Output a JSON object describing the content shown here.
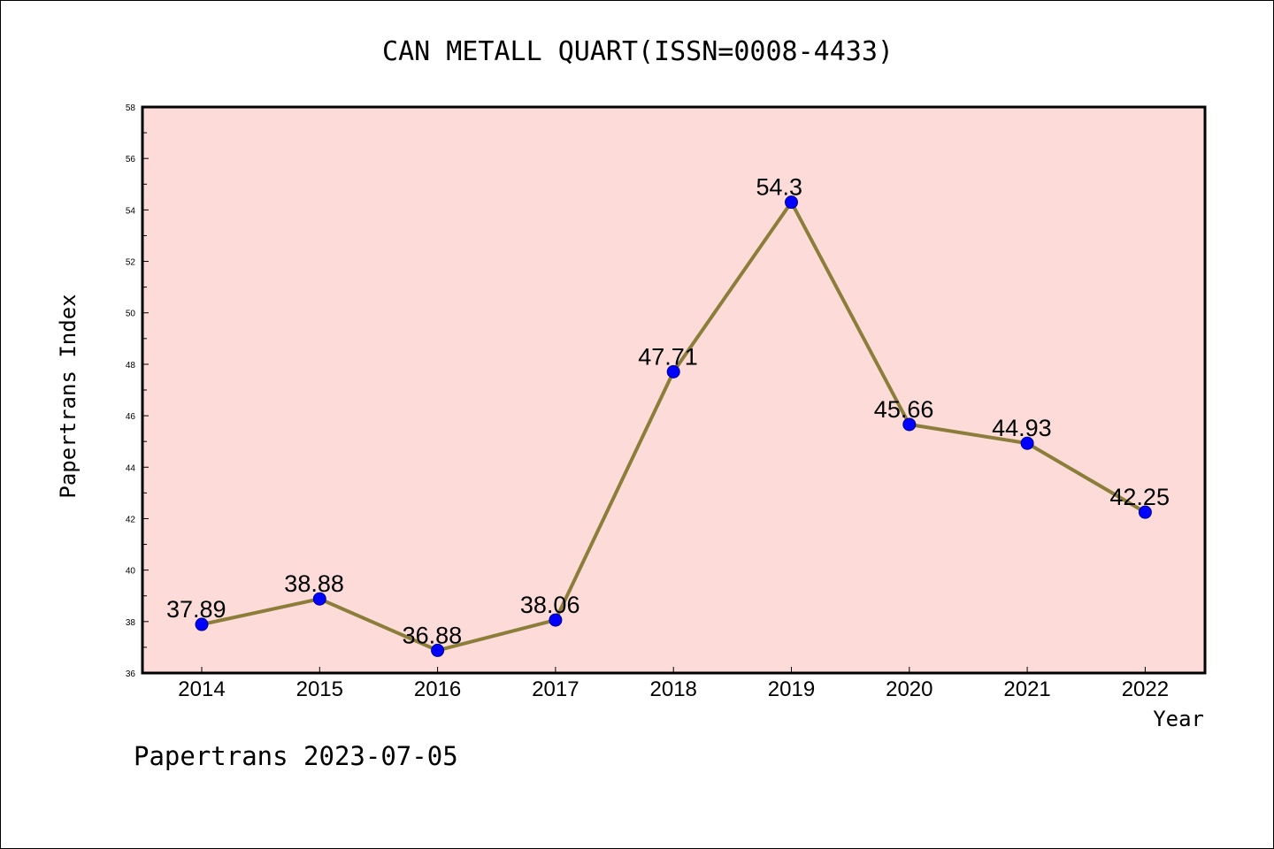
{
  "chart_data": {
    "type": "line",
    "title": "CAN METALL QUART(ISSN=0008-4433)",
    "xlabel": "Year",
    "ylabel": "Papertrans Index",
    "categories": [
      "2014",
      "2015",
      "2016",
      "2017",
      "2018",
      "2019",
      "2020",
      "2021",
      "2022"
    ],
    "series": [
      {
        "values": [
          37.89,
          38.88,
          36.88,
          38.06,
          47.71,
          54.3,
          45.66,
          44.93,
          42.25
        ],
        "labels": [
          "37.89",
          "38.88",
          "36.88",
          "38.06",
          "47.71",
          "54.3",
          "45.66",
          "44.93",
          "42.25"
        ]
      }
    ],
    "ylim": [
      36,
      58
    ],
    "yticks": [
      "36",
      "38",
      "40",
      "42",
      "44",
      "46",
      "48",
      "50",
      "52",
      "54",
      "56",
      "58"
    ],
    "grid": false,
    "colors": {
      "plot_background": "#fddbd8",
      "line": "#8b7d3a",
      "marker": "#0000ff",
      "axis": "#000000"
    },
    "footer": "Papertrans 2023-07-05"
  }
}
